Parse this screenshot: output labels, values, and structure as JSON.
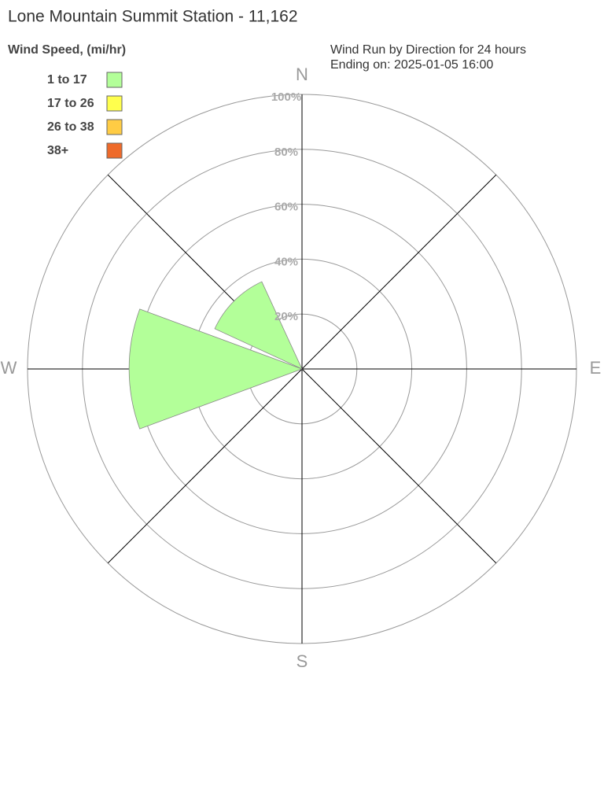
{
  "chart_data": {
    "type": "windrose",
    "title": "Lone Mountain Summit Station - 11,162",
    "subtitle": [
      "Wind Run by Direction for 24 hours",
      "Ending on: 2025-01-05 16:00"
    ],
    "legend_title": "Wind Speed, (mi/hr)",
    "categories": [
      "N",
      null,
      "E",
      null,
      "S",
      null,
      "W",
      null
    ],
    "series": [
      {
        "name": "1 to 17",
        "color": "#b3ff99",
        "values": [
          0,
          0,
          0,
          0,
          0,
          0,
          63,
          35
        ]
      },
      {
        "name": "17 to 26",
        "color": "#ffff4d",
        "values": [
          0,
          0,
          0,
          0,
          0,
          0,
          0,
          0
        ]
      },
      {
        "name": "26 to 38",
        "color": "#ffcc44",
        "values": [
          0,
          0,
          0,
          0,
          0,
          0,
          0,
          0
        ]
      },
      {
        "name": "38+",
        "color": "#ee6a2a",
        "values": [
          0,
          0,
          0,
          0,
          0,
          0,
          0,
          0
        ]
      }
    ],
    "rlim": [
      0,
      100
    ],
    "rticks": [
      {
        "value": 20,
        "label": "20%"
      },
      {
        "value": 40,
        "label": "40%"
      },
      {
        "value": 60,
        "label": "60%"
      },
      {
        "value": 80,
        "label": "80%"
      },
      {
        "value": 100,
        "label": "100%"
      }
    ]
  }
}
